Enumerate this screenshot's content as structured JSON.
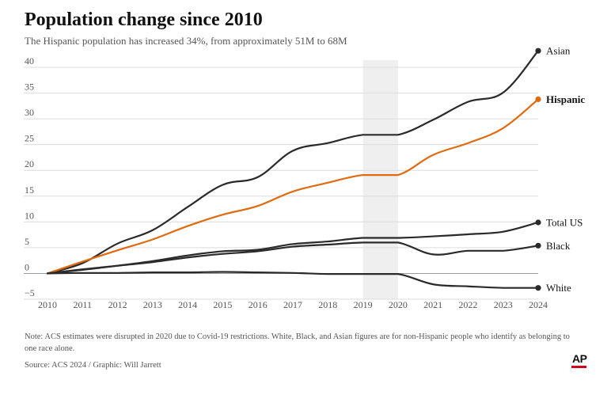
{
  "header": {
    "title": "Population change since 2010",
    "subtitle": "The Hispanic population has increased 34%, from approximately 51M to 68M"
  },
  "footer": {
    "note": "Note: ACS estimates were disrupted in 2020 due to Covid-19 restrictions. White, Black, and Asian figures are for non-Hispanic people who identify as belonging to one race alone.",
    "source": "Source: ACS 2024 / Graphic: Will Jarrett",
    "logo_text": "AP"
  },
  "colors": {
    "hispanic": "#e06a10",
    "other": "#2a2a2a",
    "gridline": "#dcdcdc",
    "shade": "#efefef",
    "logo_red": "#d0021b"
  },
  "chart_data": {
    "type": "line",
    "title": "Population change since 2010",
    "subtitle": "The Hispanic population has increased 34%, from approximately 51M to 68M",
    "xlabel": "",
    "ylabel": "",
    "x": [
      2010,
      2011,
      2012,
      2013,
      2014,
      2015,
      2016,
      2017,
      2018,
      2019,
      2020,
      2021,
      2022,
      2023,
      2024
    ],
    "x_tick_labels": [
      "2010",
      "2011",
      "2012",
      "2013",
      "2014",
      "2015",
      "2016",
      "2017",
      "2018",
      "2019",
      "2020",
      "2021",
      "2022",
      "2023",
      "2024"
    ],
    "y_tick_values": [
      -5,
      0,
      5,
      10,
      15,
      20,
      25,
      30,
      35,
      40
    ],
    "y_tick_labels": [
      "−5",
      "0",
      "5",
      "10",
      "15",
      "20",
      "25",
      "30",
      "35",
      "40"
    ],
    "ylim": [
      -5,
      42
    ],
    "xlim": [
      2010,
      2024
    ],
    "grid": "horizontal",
    "shaded_range": [
      2019,
      2020
    ],
    "series": [
      {
        "name": "Asian",
        "label": "Asian",
        "color": "#2a2a2a",
        "bold": false,
        "values": [
          0,
          2.0,
          5.8,
          8.4,
          12.9,
          17.2,
          18.7,
          23.8,
          25.3,
          26.9,
          26.9,
          29.8,
          33.3,
          35.1,
          43.2
        ]
      },
      {
        "name": "Hispanic",
        "label": "Hispanic",
        "color": "#e06a10",
        "bold": true,
        "values": [
          0,
          2.3,
          4.5,
          6.6,
          9.2,
          11.4,
          13.1,
          15.9,
          17.6,
          19.1,
          19.1,
          23.0,
          25.3,
          28.2,
          33.8
        ]
      },
      {
        "name": "Total US",
        "label": "Total US",
        "color": "#2a2a2a",
        "bold": false,
        "values": [
          0,
          0.7,
          1.5,
          2.4,
          3.5,
          4.3,
          4.6,
          5.7,
          6.2,
          6.9,
          6.9,
          7.2,
          7.6,
          8.1,
          9.9
        ]
      },
      {
        "name": "Black",
        "label": "Black",
        "color": "#2a2a2a",
        "bold": false,
        "values": [
          0,
          0.8,
          1.5,
          2.2,
          3.1,
          3.8,
          4.3,
          5.2,
          5.6,
          6.0,
          6.0,
          3.7,
          4.4,
          4.4,
          5.4
        ]
      },
      {
        "name": "White",
        "label": "White",
        "color": "#2a2a2a",
        "bold": false,
        "values": [
          0,
          0.1,
          0.1,
          0.2,
          0.2,
          0.3,
          0.2,
          0.1,
          -0.1,
          -0.1,
          -0.1,
          -2.1,
          -2.5,
          -2.8,
          -2.8
        ]
      }
    ]
  }
}
